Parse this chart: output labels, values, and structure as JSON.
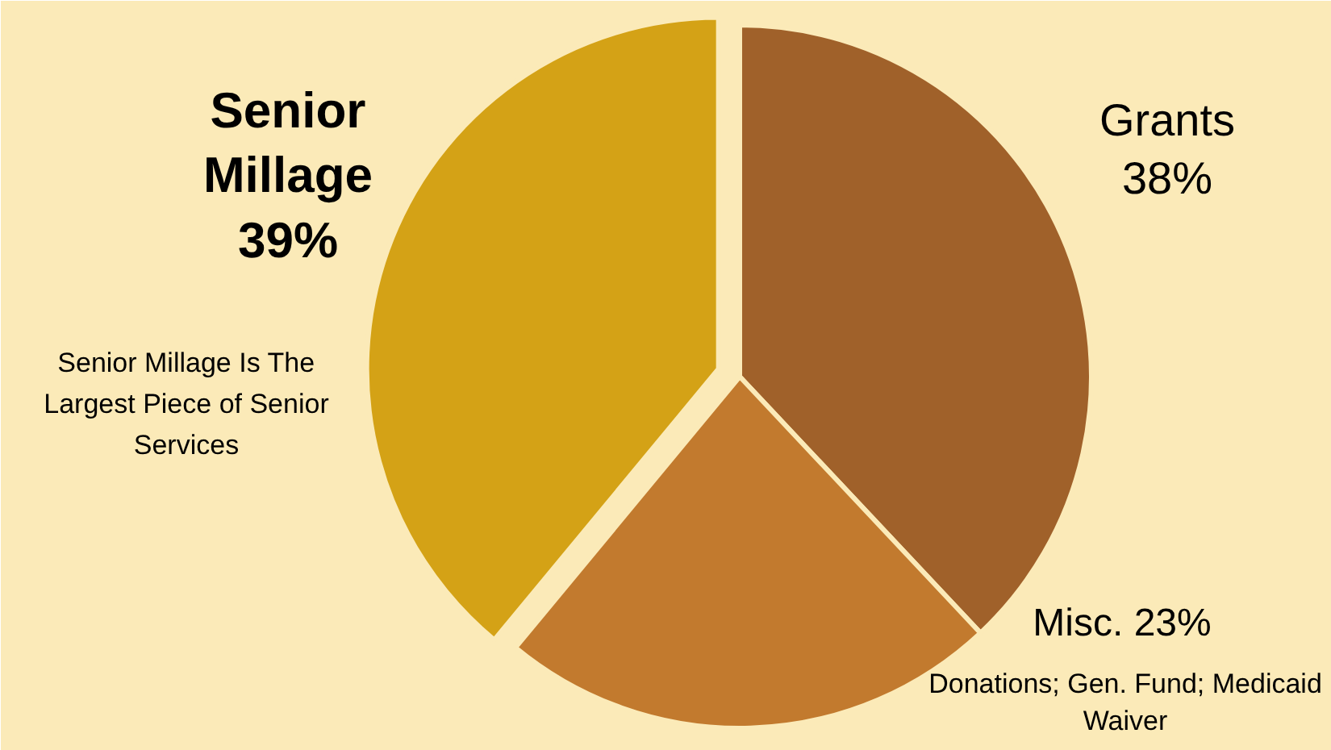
{
  "chart_data": {
    "type": "pie",
    "categories": [
      "Grants",
      "Misc.",
      "Senior Millage"
    ],
    "values": [
      38,
      23,
      39
    ],
    "colors": [
      "#a0612a",
      "#c27a2e",
      "#d4a216"
    ],
    "value_labels": [
      "38%",
      "23%",
      "39%"
    ],
    "annotations": [
      "Donations; Gen. Fund; Medicaid Waiver",
      "Senior Millage Is The Largest Piece of Senior Services"
    ]
  }
}
